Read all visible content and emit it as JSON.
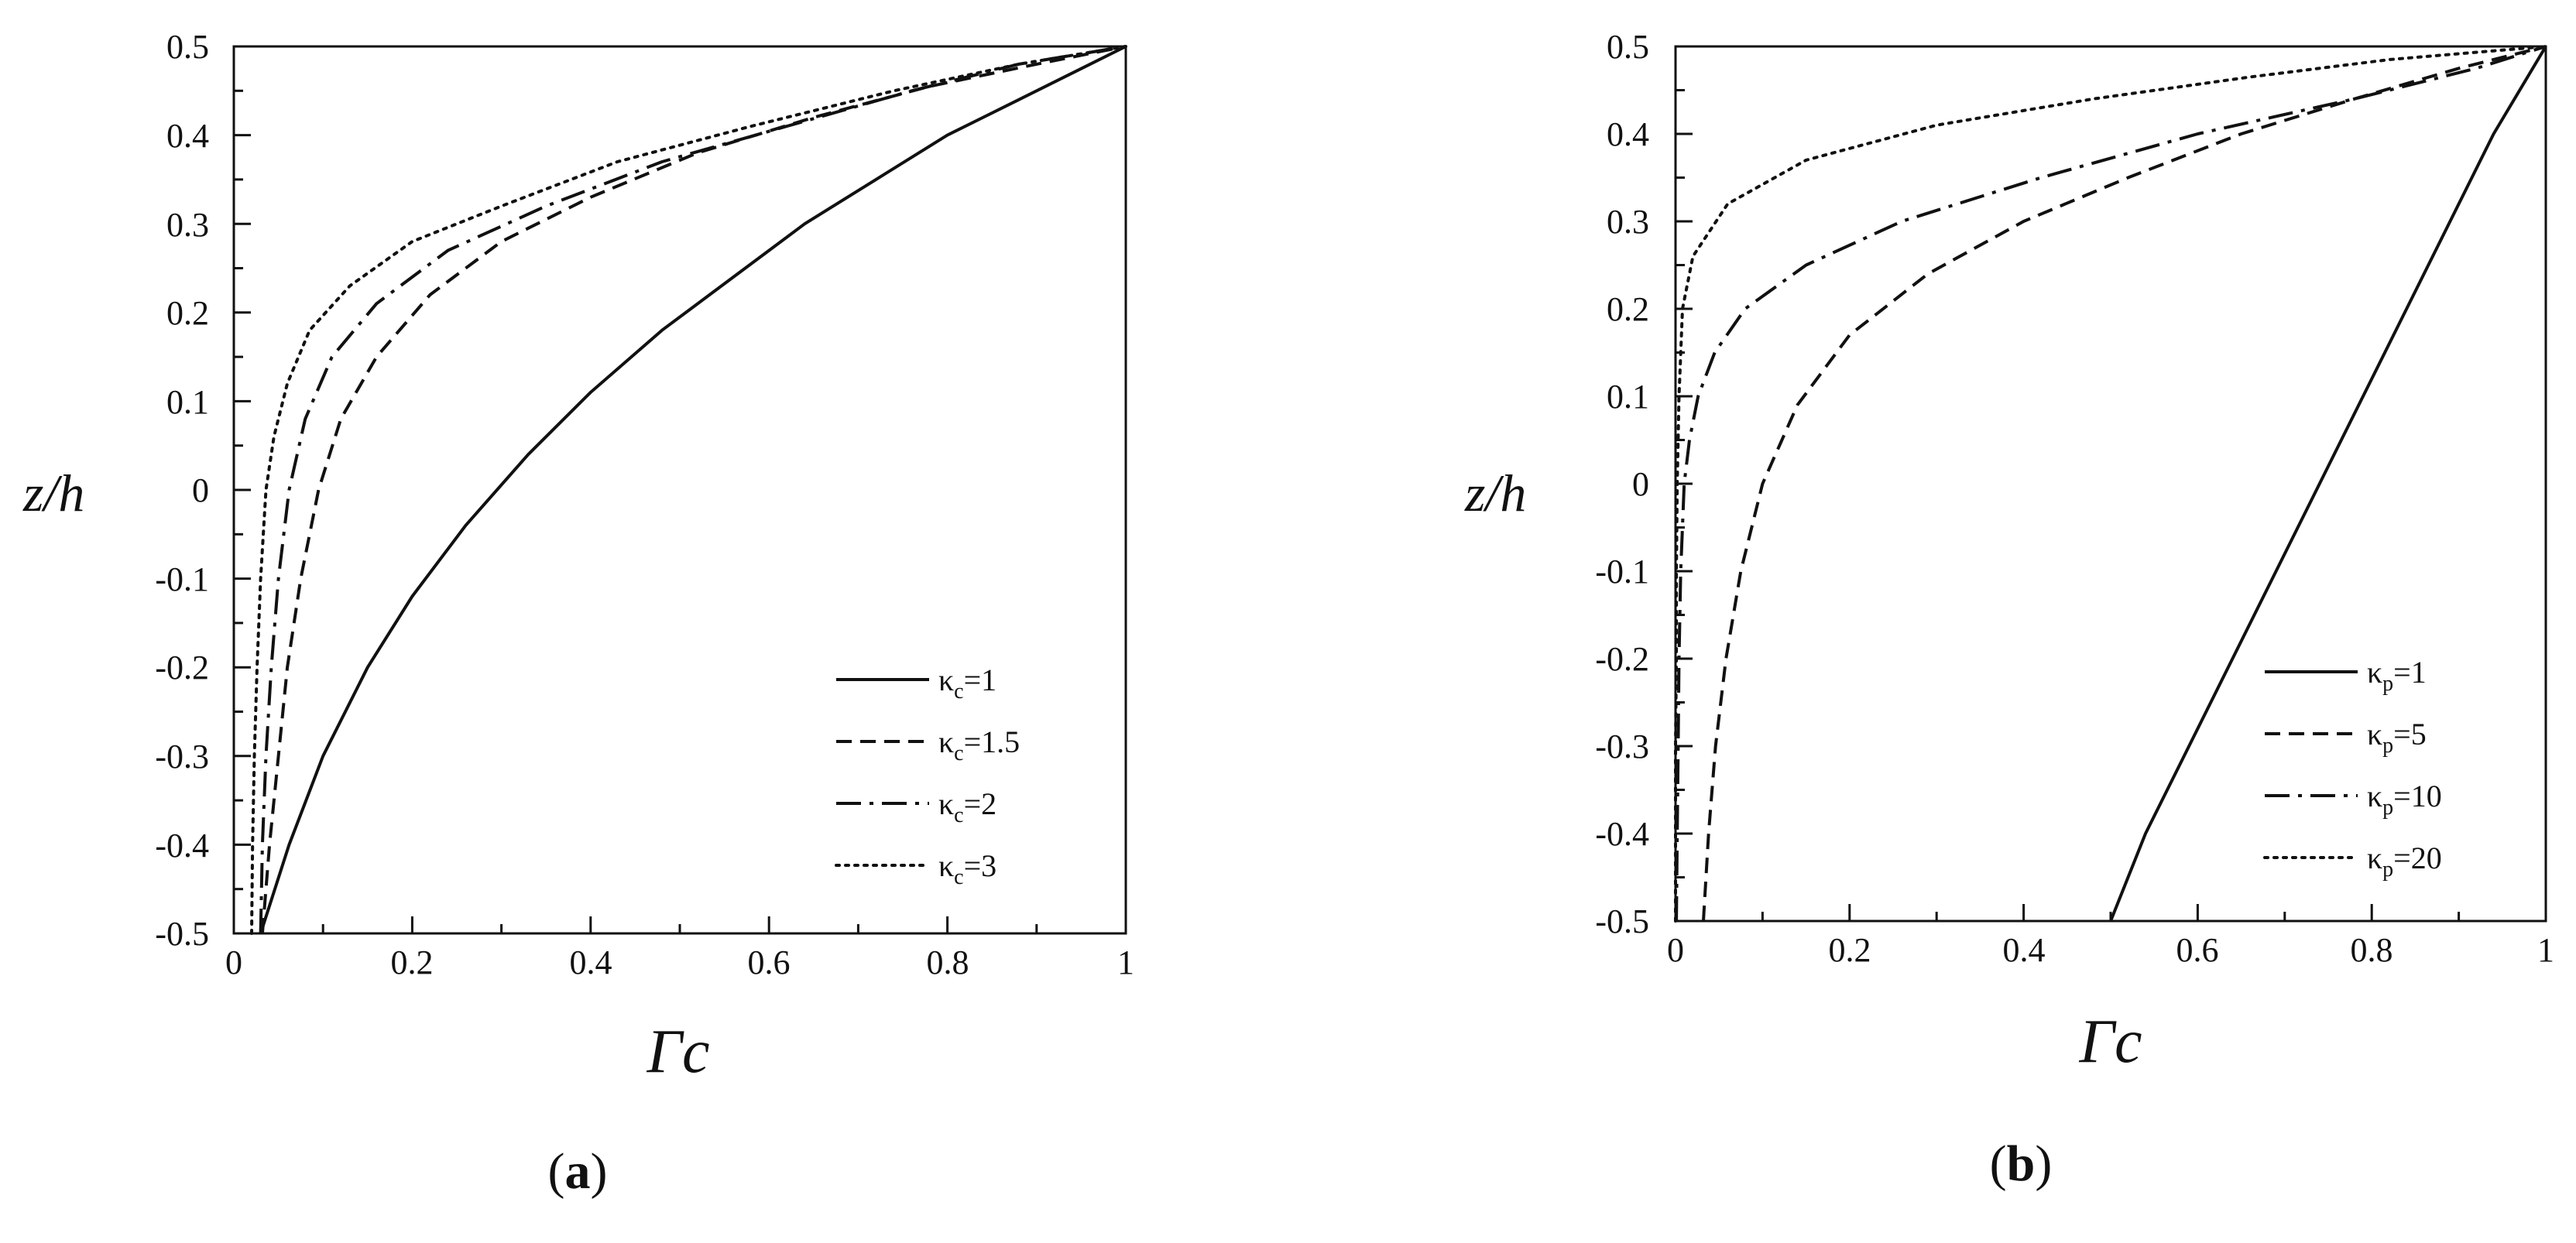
{
  "chart_data": [
    {
      "type": "line",
      "panel_label": {
        "open": "(",
        "letter": "a",
        "close": ")"
      },
      "xlabel": "Γc",
      "ylabel": "z/h",
      "xlim": [
        0,
        1
      ],
      "ylim": [
        -0.5,
        0.5
      ],
      "xticks": [
        "0",
        "0.2",
        "0.4",
        "0.6",
        "0.8",
        "1"
      ],
      "xtick_values": [
        0,
        0.2,
        0.4,
        0.6,
        0.8,
        1
      ],
      "yticks": [
        "-0.5",
        "-0.4",
        "-0.3",
        "-0.2",
        "-0.1",
        "0",
        "0.1",
        "0.2",
        "0.3",
        "0.4",
        "0.5"
      ],
      "ytick_values": [
        -0.5,
        -0.4,
        -0.3,
        -0.2,
        -0.1,
        0,
        0.1,
        0.2,
        0.3,
        0.4,
        0.5
      ],
      "grid": false,
      "legend_position": "bottom-right",
      "series": [
        {
          "name": "κc=1",
          "symbol": "κ",
          "sub": "c",
          "value_text": "=1",
          "style": "solid",
          "x": [
            0.03,
            0.062,
            0.1,
            0.15,
            0.2,
            0.26,
            0.33,
            0.4,
            0.48,
            0.56,
            0.64,
            0.72,
            0.8,
            0.88,
            1.0
          ],
          "y": [
            -0.5,
            -0.4,
            -0.3,
            -0.2,
            -0.12,
            -0.04,
            0.04,
            0.11,
            0.18,
            0.24,
            0.3,
            0.35,
            0.4,
            0.44,
            0.5
          ]
        },
        {
          "name": "κc=1.5",
          "symbol": "κ",
          "sub": "c",
          "value_text": "=1.5",
          "style": "dashed",
          "x": [
            0.032,
            0.04,
            0.05,
            0.06,
            0.075,
            0.095,
            0.12,
            0.16,
            0.22,
            0.3,
            0.4,
            0.52,
            0.65,
            0.78,
            0.9,
            1.0
          ],
          "y": [
            -0.5,
            -0.4,
            -0.3,
            -0.2,
            -0.1,
            0.0,
            0.08,
            0.15,
            0.22,
            0.28,
            0.33,
            0.38,
            0.42,
            0.455,
            0.48,
            0.5
          ]
        },
        {
          "name": "κc=2",
          "symbol": "κ",
          "sub": "c",
          "value_text": "=2",
          "style": "dashdot",
          "x": [
            0.03,
            0.032,
            0.036,
            0.042,
            0.05,
            0.062,
            0.08,
            0.11,
            0.16,
            0.24,
            0.35,
            0.48,
            0.62,
            0.76,
            0.88,
            1.0
          ],
          "y": [
            -0.5,
            -0.4,
            -0.3,
            -0.2,
            -0.1,
            0.0,
            0.08,
            0.15,
            0.21,
            0.27,
            0.32,
            0.37,
            0.41,
            0.45,
            0.48,
            0.5
          ]
        },
        {
          "name": "κc=3",
          "symbol": "κ",
          "sub": "c",
          "value_text": "=3",
          "style": "dotted",
          "x": [
            0.02,
            0.021,
            0.023,
            0.026,
            0.03,
            0.036,
            0.045,
            0.06,
            0.085,
            0.13,
            0.2,
            0.3,
            0.43,
            0.58,
            0.74,
            0.88,
            1.0
          ],
          "y": [
            -0.5,
            -0.4,
            -0.3,
            -0.2,
            -0.1,
            0.0,
            0.06,
            0.12,
            0.18,
            0.23,
            0.28,
            0.32,
            0.37,
            0.41,
            0.45,
            0.48,
            0.5
          ]
        }
      ]
    },
    {
      "type": "line",
      "panel_label": {
        "open": "(",
        "letter": "b",
        "close": ")"
      },
      "xlabel": "Γc",
      "ylabel": "z/h",
      "xlim": [
        0,
        1
      ],
      "ylim": [
        -0.5,
        0.5
      ],
      "xticks": [
        "0",
        "0.2",
        "0.4",
        "0.6",
        "0.8",
        "1"
      ],
      "xtick_values": [
        0,
        0.2,
        0.4,
        0.6,
        0.8,
        1
      ],
      "yticks": [
        "-0.5",
        "-0.4",
        "-0.3",
        "-0.2",
        "-0.1",
        "0",
        "0.1",
        "0.2",
        "0.3",
        "0.4",
        "0.5"
      ],
      "ytick_values": [
        -0.5,
        -0.4,
        -0.3,
        -0.2,
        -0.1,
        0,
        0.1,
        0.2,
        0.3,
        0.4,
        0.5
      ],
      "grid": false,
      "legend_position": "bottom-right",
      "series": [
        {
          "name": "κp=1",
          "symbol": "κ",
          "sub": "p",
          "value_text": "=1",
          "style": "solid",
          "x": [
            0.5,
            0.54,
            0.59,
            0.64,
            0.69,
            0.74,
            0.79,
            0.84,
            0.89,
            0.94,
            1.0
          ],
          "y": [
            -0.5,
            -0.4,
            -0.3,
            -0.2,
            -0.1,
            0.0,
            0.1,
            0.2,
            0.3,
            0.4,
            0.5
          ]
        },
        {
          "name": "κp=5",
          "symbol": "κ",
          "sub": "p",
          "value_text": "=5",
          "style": "dashed",
          "x": [
            0.032,
            0.038,
            0.046,
            0.058,
            0.075,
            0.1,
            0.14,
            0.2,
            0.29,
            0.4,
            0.52,
            0.65,
            0.78,
            0.9,
            1.0
          ],
          "y": [
            -0.5,
            -0.4,
            -0.3,
            -0.2,
            -0.1,
            0.0,
            0.09,
            0.17,
            0.24,
            0.3,
            0.35,
            0.4,
            0.44,
            0.475,
            0.5
          ]
        },
        {
          "name": "κp=10",
          "symbol": "κ",
          "sub": "p",
          "value_text": "=10",
          "style": "dashdot",
          "x": [
            0.001,
            0.002,
            0.003,
            0.004,
            0.006,
            0.01,
            0.016,
            0.026,
            0.045,
            0.08,
            0.15,
            0.26,
            0.42,
            0.6,
            0.78,
            0.92,
            1.0
          ],
          "y": [
            -0.5,
            -0.4,
            -0.3,
            -0.2,
            -0.1,
            0.0,
            0.05,
            0.1,
            0.15,
            0.2,
            0.25,
            0.3,
            0.35,
            0.4,
            0.44,
            0.475,
            0.5
          ]
        },
        {
          "name": "κp=20",
          "symbol": "κ",
          "sub": "p",
          "value_text": "=20",
          "style": "dotted",
          "x": [
            0.0,
            0.0,
            0.0,
            0.001,
            0.001,
            0.002,
            0.004,
            0.008,
            0.02,
            0.06,
            0.15,
            0.3,
            0.48,
            0.66,
            0.82,
            0.94,
            1.0
          ],
          "y": [
            -0.5,
            -0.4,
            -0.3,
            -0.2,
            -0.1,
            0.0,
            0.1,
            0.2,
            0.26,
            0.32,
            0.37,
            0.41,
            0.44,
            0.465,
            0.485,
            0.495,
            0.5
          ]
        }
      ]
    }
  ]
}
